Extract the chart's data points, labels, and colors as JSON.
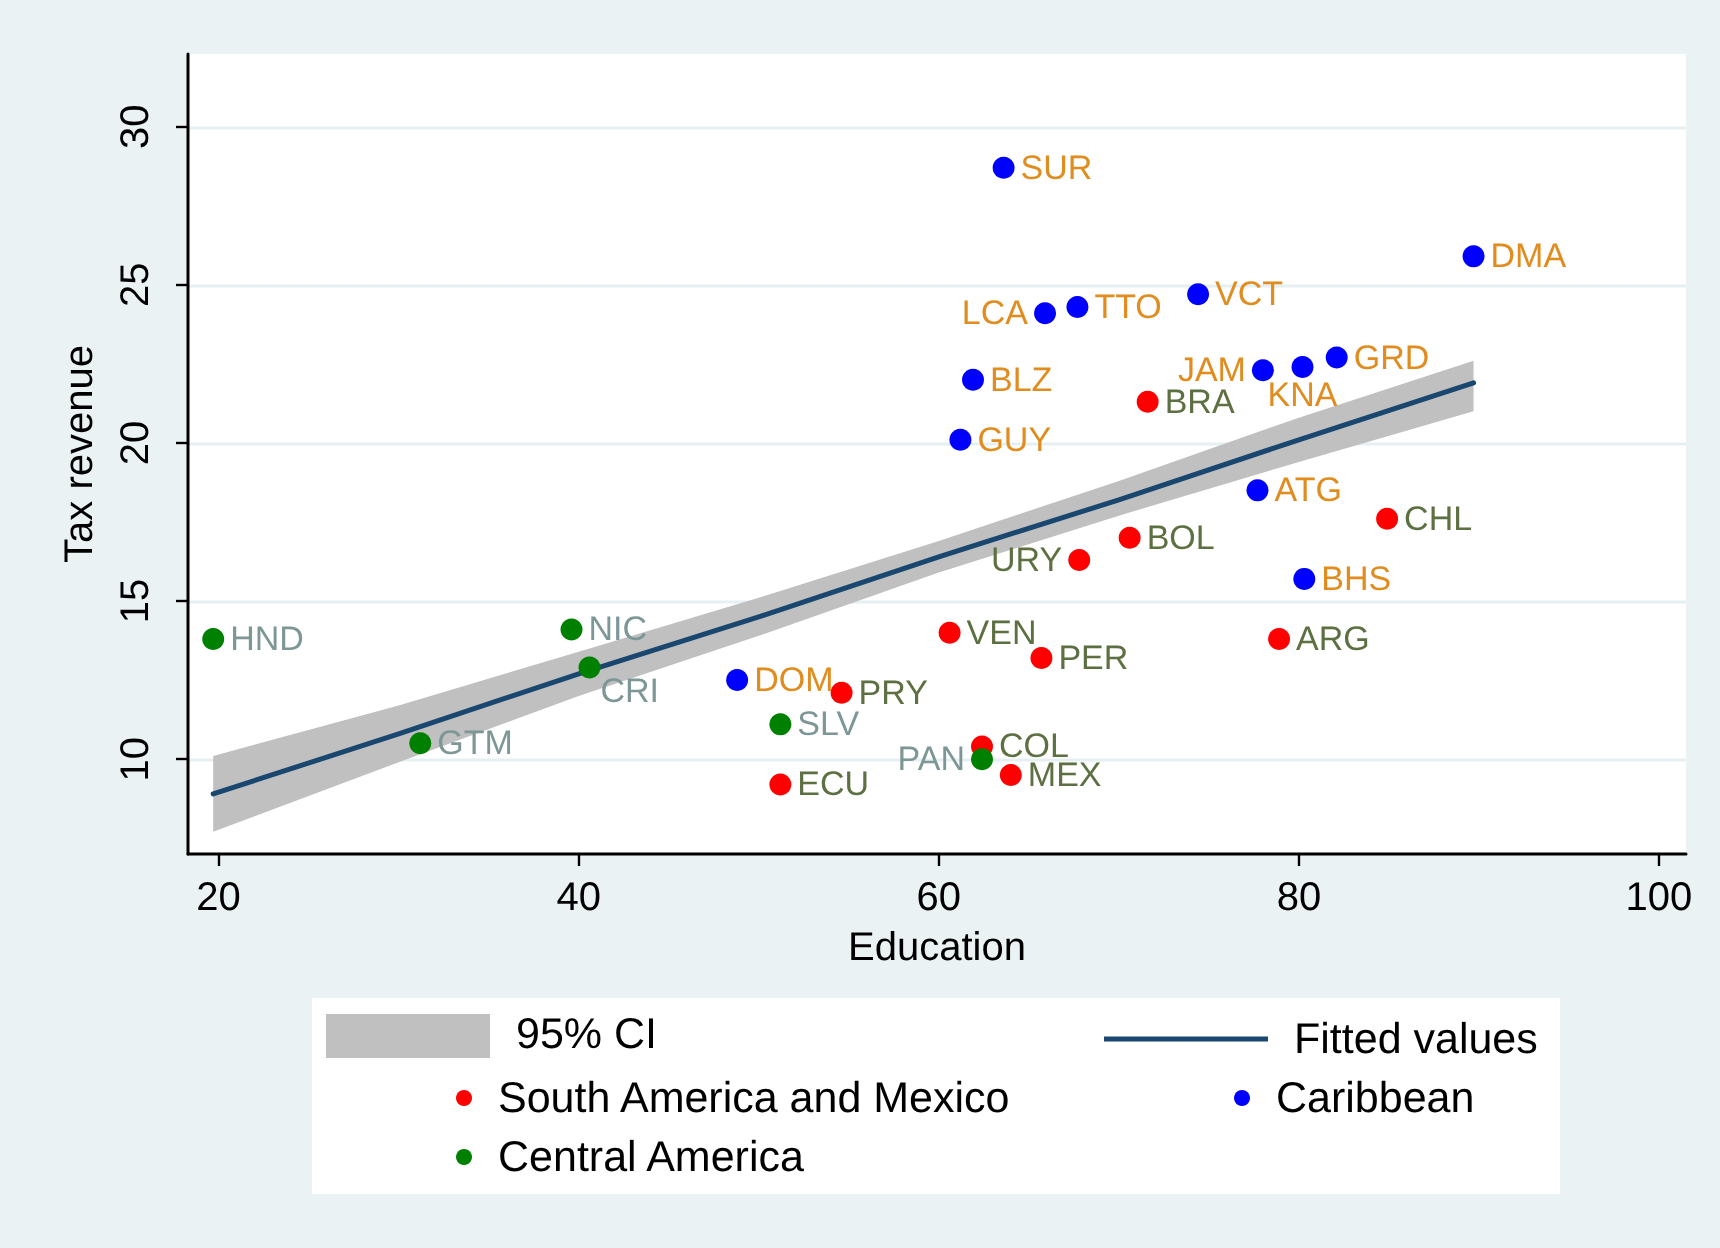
{
  "chart_data": {
    "type": "scatter",
    "xlabel": "Education",
    "ylabel": "Tax revenue",
    "xlim": [
      18.3,
      101.5
    ],
    "ylim": [
      7.0,
      32.3
    ],
    "xticks": [
      20,
      40,
      60,
      80,
      100
    ],
    "yticks": [
      10,
      15,
      20,
      25,
      30
    ],
    "grid": "y",
    "legend": "bottom",
    "marker": "circle",
    "annotations": [
      "95% CI"
    ],
    "series": [
      {
        "name": "Fitted values",
        "type": "line",
        "color": "#1a476f",
        "marker": "none",
        "x": [
          19.7,
          30,
          40,
          50,
          60,
          70,
          80,
          89.7
        ],
        "values": [
          8.9,
          10.8,
          12.7,
          14.5,
          16.4,
          18.2,
          20.1,
          21.9
        ],
        "lower": [
          7.7,
          9.9,
          12.0,
          13.9,
          15.9,
          17.7,
          19.4,
          21.0
        ],
        "upper": [
          10.1,
          11.7,
          13.4,
          15.1,
          16.9,
          18.8,
          20.8,
          22.6
        ]
      },
      {
        "name": "South America and Mexico",
        "color": "#ff0000",
        "x": [
          71.6,
          84.9,
          70.6,
          67.8,
          60.6,
          65.7,
          78.9,
          62.4,
          64.0,
          54.6,
          51.2
        ],
        "values": [
          21.3,
          17.6,
          17.0,
          16.3,
          14.0,
          13.2,
          13.8,
          10.4,
          9.5,
          12.1,
          9.2
        ],
        "value_labels": [
          "BRA",
          "CHL",
          "BOL",
          "URY",
          "VEN",
          "PER",
          "ARG",
          "COL",
          "MEX",
          "PRY",
          "ECU"
        ]
      },
      {
        "name": "Caribbean",
        "color": "#0000ff",
        "x": [
          63.6,
          89.7,
          65.9,
          67.7,
          74.4,
          61.9,
          61.2,
          78.0,
          80.2,
          82.1,
          77.7,
          80.3,
          48.8
        ],
        "values": [
          28.7,
          25.9,
          24.1,
          24.3,
          24.7,
          22.0,
          20.1,
          22.3,
          22.4,
          22.7,
          18.5,
          15.7,
          12.5
        ],
        "value_labels": [
          "SUR",
          "DMA",
          "LCA",
          "TTO",
          "VCT",
          "BLZ",
          "GUY",
          "JAM",
          "KNA",
          "GRD",
          "ATG",
          "BHS",
          "DOM"
        ]
      },
      {
        "name": "Central America",
        "color": "#008000",
        "x": [
          19.7,
          39.6,
          40.6,
          31.2,
          51.2,
          62.4
        ],
        "values": [
          13.8,
          14.1,
          12.9,
          10.5,
          11.1,
          10.0
        ],
        "value_labels": [
          "HND",
          "NIC",
          "CRI",
          "GTM",
          "SLV",
          "PAN"
        ]
      }
    ]
  }
}
